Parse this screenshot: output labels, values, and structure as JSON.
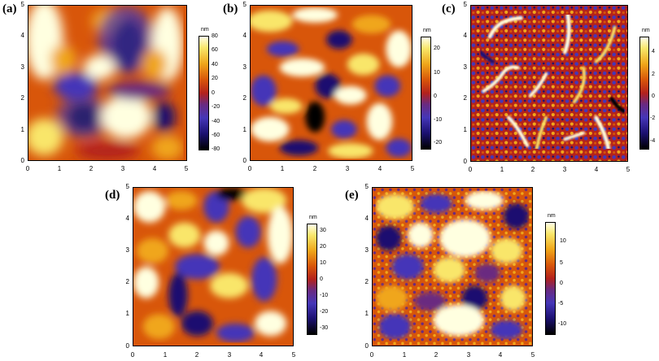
{
  "panels": [
    {
      "label": "(a)",
      "y_ticks": [
        "5",
        "4",
        "3",
        "2",
        "1",
        "0"
      ],
      "x_ticks": [
        "0",
        "1",
        "2",
        "3",
        "4",
        "5"
      ],
      "colorbar_unit": "nm",
      "colorbar_ticks": [
        "80",
        "60",
        "40",
        "20",
        "0",
        "-20",
        "-40",
        "-60",
        "-80"
      ]
    },
    {
      "label": "(b)",
      "y_ticks": [
        "5",
        "4",
        "3",
        "2",
        "1",
        "0"
      ],
      "x_ticks": [
        "0",
        "1",
        "2",
        "3",
        "4",
        "5"
      ],
      "colorbar_unit": "nm",
      "colorbar_ticks": [
        "20",
        "10",
        "0",
        "-10",
        "-20"
      ]
    },
    {
      "label": "(c)",
      "y_ticks": [
        "5",
        "4",
        "3",
        "2",
        "1",
        "0"
      ],
      "x_ticks": [
        "0",
        "1",
        "2",
        "3",
        "4",
        "5"
      ],
      "colorbar_unit": "nm",
      "colorbar_ticks": [
        "4",
        "2",
        "0",
        "-2",
        "-4"
      ]
    },
    {
      "label": "(d)",
      "y_ticks": [
        "5",
        "4",
        "3",
        "2",
        "1",
        "0"
      ],
      "x_ticks": [
        "0",
        "1",
        "2",
        "3",
        "4",
        "5"
      ],
      "colorbar_unit": "nm",
      "colorbar_ticks": [
        "30",
        "20",
        "10",
        "0",
        "-10",
        "-20",
        "-30"
      ]
    },
    {
      "label": "(e)",
      "y_ticks": [
        "5",
        "4",
        "3",
        "2",
        "1",
        "0"
      ],
      "x_ticks": [
        "0",
        "1",
        "2",
        "3",
        "4",
        "5"
      ],
      "colorbar_unit": "nm",
      "colorbar_ticks": [
        "10",
        "5",
        "0",
        "-5",
        "-10"
      ]
    }
  ]
}
